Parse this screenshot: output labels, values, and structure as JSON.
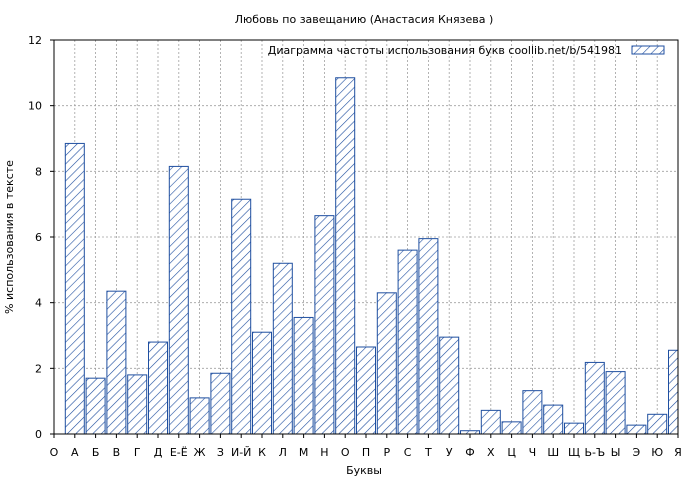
{
  "chart_data": {
    "type": "bar",
    "title": "Любовь по завещанию (Анастасия Князева )",
    "xlabel": "Буквы",
    "ylabel": "% использования в тексте",
    "ylim": [
      0,
      12
    ],
    "yticks": [
      "0",
      "2",
      "4",
      "6",
      "8",
      "10",
      "12"
    ],
    "grid": true,
    "legend_position": "top-right",
    "categories": [
      "О",
      "А",
      "Б",
      "В",
      "Г",
      "Д",
      "Е-Ё",
      "Ж",
      "З",
      "И-Й",
      "К",
      "Л",
      "М",
      "Н",
      "О",
      "П",
      "Р",
      "С",
      "Т",
      "У",
      "Ф",
      "Х",
      "Ц",
      "Ч",
      "Ш",
      "Щ",
      "Ь-Ъ",
      "Ы",
      "Э",
      "Ю",
      "Я"
    ],
    "series": [
      {
        "name": "Диаграмма частоты использования букв  coollib.net/b/541981",
        "values": [
          null,
          8.85,
          1.7,
          4.35,
          1.8,
          2.8,
          8.15,
          1.1,
          1.85,
          7.15,
          3.1,
          5.2,
          3.55,
          6.65,
          10.85,
          2.65,
          4.3,
          5.6,
          5.95,
          2.95,
          0.1,
          0.72,
          0.37,
          1.32,
          0.88,
          0.33,
          2.18,
          1.9,
          0.27,
          0.6,
          2.55
        ]
      }
    ],
    "colors": {
      "bar_stroke": "#1f4fa0",
      "hatch": "#1f4fa0",
      "grid": "#a0a0a0",
      "axis": "#000000"
    }
  }
}
